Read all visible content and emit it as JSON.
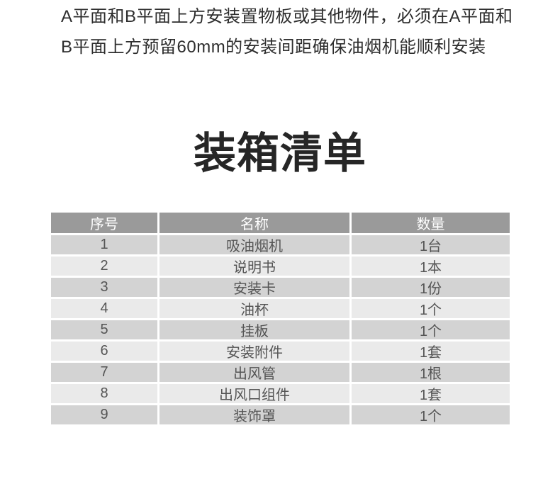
{
  "notice": {
    "line1": "A平面和B平面上方安装置物板或其他物件，必须在A平面和",
    "line2": "B平面上方预留60mm的安装间距确保油烟机能顺利安装"
  },
  "title": "装箱清单",
  "table": {
    "headers": [
      "序号",
      "名称",
      "数量"
    ],
    "rows": [
      [
        "1",
        "吸油烟机",
        "1台"
      ],
      [
        "2",
        "说明书",
        "1本"
      ],
      [
        "3",
        "安装卡",
        "1份"
      ],
      [
        "4",
        "油杯",
        "1个"
      ],
      [
        "5",
        "挂板",
        "1个"
      ],
      [
        "6",
        "安装附件",
        "1套"
      ],
      [
        "7",
        "出风管",
        "1根"
      ],
      [
        "8",
        "出风口组件",
        "1套"
      ],
      [
        "9",
        "装饰罩",
        "1个"
      ]
    ]
  },
  "colors": {
    "header_bg": "#9a9a9a",
    "header_text": "#ffffff",
    "row_dark_bg": "#d3d3d3",
    "row_light_bg": "#eaeaea",
    "body_text": "#555555",
    "notice_text": "#2d2d2d",
    "title_text": "#262626"
  }
}
